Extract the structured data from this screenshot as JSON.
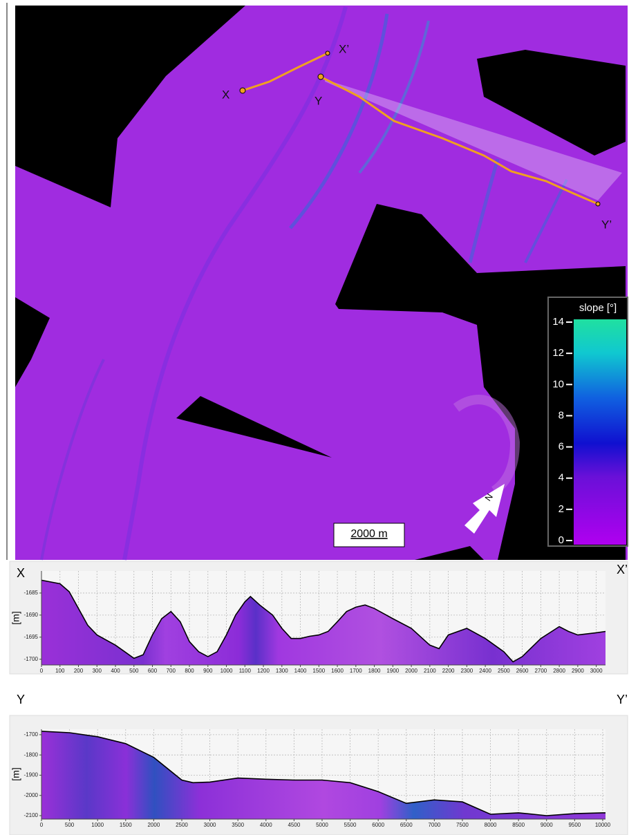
{
  "map": {
    "markers": {
      "x_start": "X",
      "x_end": "X’",
      "y_start": "Y",
      "y_end": "Y’"
    },
    "colorbar": {
      "title": "slope [°]",
      "lim": [
        0,
        14
      ],
      "ticks": [
        0,
        2,
        4,
        6,
        8,
        10,
        12,
        14
      ]
    },
    "scale_bar": "2000 m",
    "north": "N"
  },
  "chart_data": [
    {
      "type": "area",
      "y_label": "[m]",
      "start_label": "X",
      "end_label": "X’",
      "color": "#000000",
      "x": [
        0,
        100,
        150,
        200,
        250,
        300,
        400,
        450,
        500,
        550,
        600,
        650,
        700,
        750,
        800,
        850,
        900,
        950,
        1000,
        1050,
        1100,
        1130,
        1180,
        1250,
        1300,
        1350,
        1400,
        1450,
        1500,
        1550,
        1600,
        1650,
        1700,
        1750,
        1800,
        1900,
        2000,
        2100,
        2150,
        2200,
        2300,
        2400,
        2500,
        2550,
        2600,
        2700,
        2800,
        2850,
        2900,
        3000,
        3050
      ],
      "values": [
        -1682.1,
        -1682.9,
        -1684.7,
        -1688.5,
        -1692.3,
        -1694.5,
        -1696.8,
        -1698.3,
        -1699.8,
        -1699.0,
        -1694.5,
        -1690.8,
        -1689.2,
        -1691.5,
        -1696.0,
        -1698.3,
        -1699.4,
        -1698.3,
        -1694.5,
        -1690.0,
        -1687.0,
        -1685.8,
        -1687.7,
        -1690.0,
        -1693.0,
        -1695.3,
        -1695.3,
        -1694.8,
        -1694.5,
        -1693.7,
        -1691.5,
        -1689.2,
        -1688.2,
        -1687.7,
        -1688.5,
        -1690.8,
        -1693.0,
        -1696.8,
        -1697.6,
        -1694.5,
        -1693.0,
        -1695.3,
        -1698.3,
        -1700.6,
        -1699.4,
        -1695.3,
        -1692.6,
        -1693.7,
        -1694.5,
        -1694.0,
        -1693.7
      ],
      "xlim": [
        0,
        3050
      ],
      "ylim": [
        -1701.3,
        -1680
      ],
      "xticks": [
        0,
        100,
        200,
        300,
        400,
        500,
        600,
        700,
        800,
        900,
        1000,
        1100,
        1200,
        1300,
        1400,
        1500,
        1600,
        1700,
        1800,
        1900,
        2000,
        2100,
        2200,
        2300,
        2400,
        2500,
        2600,
        2700,
        2800,
        2900,
        3000
      ],
      "yticks": [
        -1685,
        -1690,
        -1695,
        -1700
      ],
      "grid": true
    },
    {
      "type": "area",
      "y_label": "[m]",
      "start_label": "Y",
      "end_label": "Y’",
      "color": "#000000",
      "x": [
        0,
        500,
        1000,
        1500,
        2000,
        2500,
        2700,
        3000,
        3500,
        4000,
        4500,
        5000,
        5500,
        6000,
        6500,
        7000,
        7500,
        8000,
        8500,
        9000,
        9500,
        10000,
        10050
      ],
      "values": [
        -1683,
        -1690,
        -1710,
        -1744,
        -1812,
        -1924,
        -1937,
        -1934,
        -1914,
        -1920,
        -1924,
        -1924,
        -1937,
        -1981,
        -2039,
        -2022,
        -2032,
        -2093,
        -2086,
        -2100,
        -2090,
        -2086,
        -2086
      ],
      "xlim": [
        0,
        10050
      ],
      "ylim": [
        -2117,
        -1673
      ],
      "xticks": [
        0,
        500,
        1000,
        1500,
        2000,
        2500,
        3000,
        3500,
        4000,
        4500,
        5000,
        5500,
        6000,
        6500,
        7000,
        7500,
        8000,
        8500,
        9000,
        9500,
        10000
      ],
      "yticks": [
        -1700,
        -1800,
        -1900,
        -2000,
        -2100
      ],
      "grid": true
    }
  ]
}
